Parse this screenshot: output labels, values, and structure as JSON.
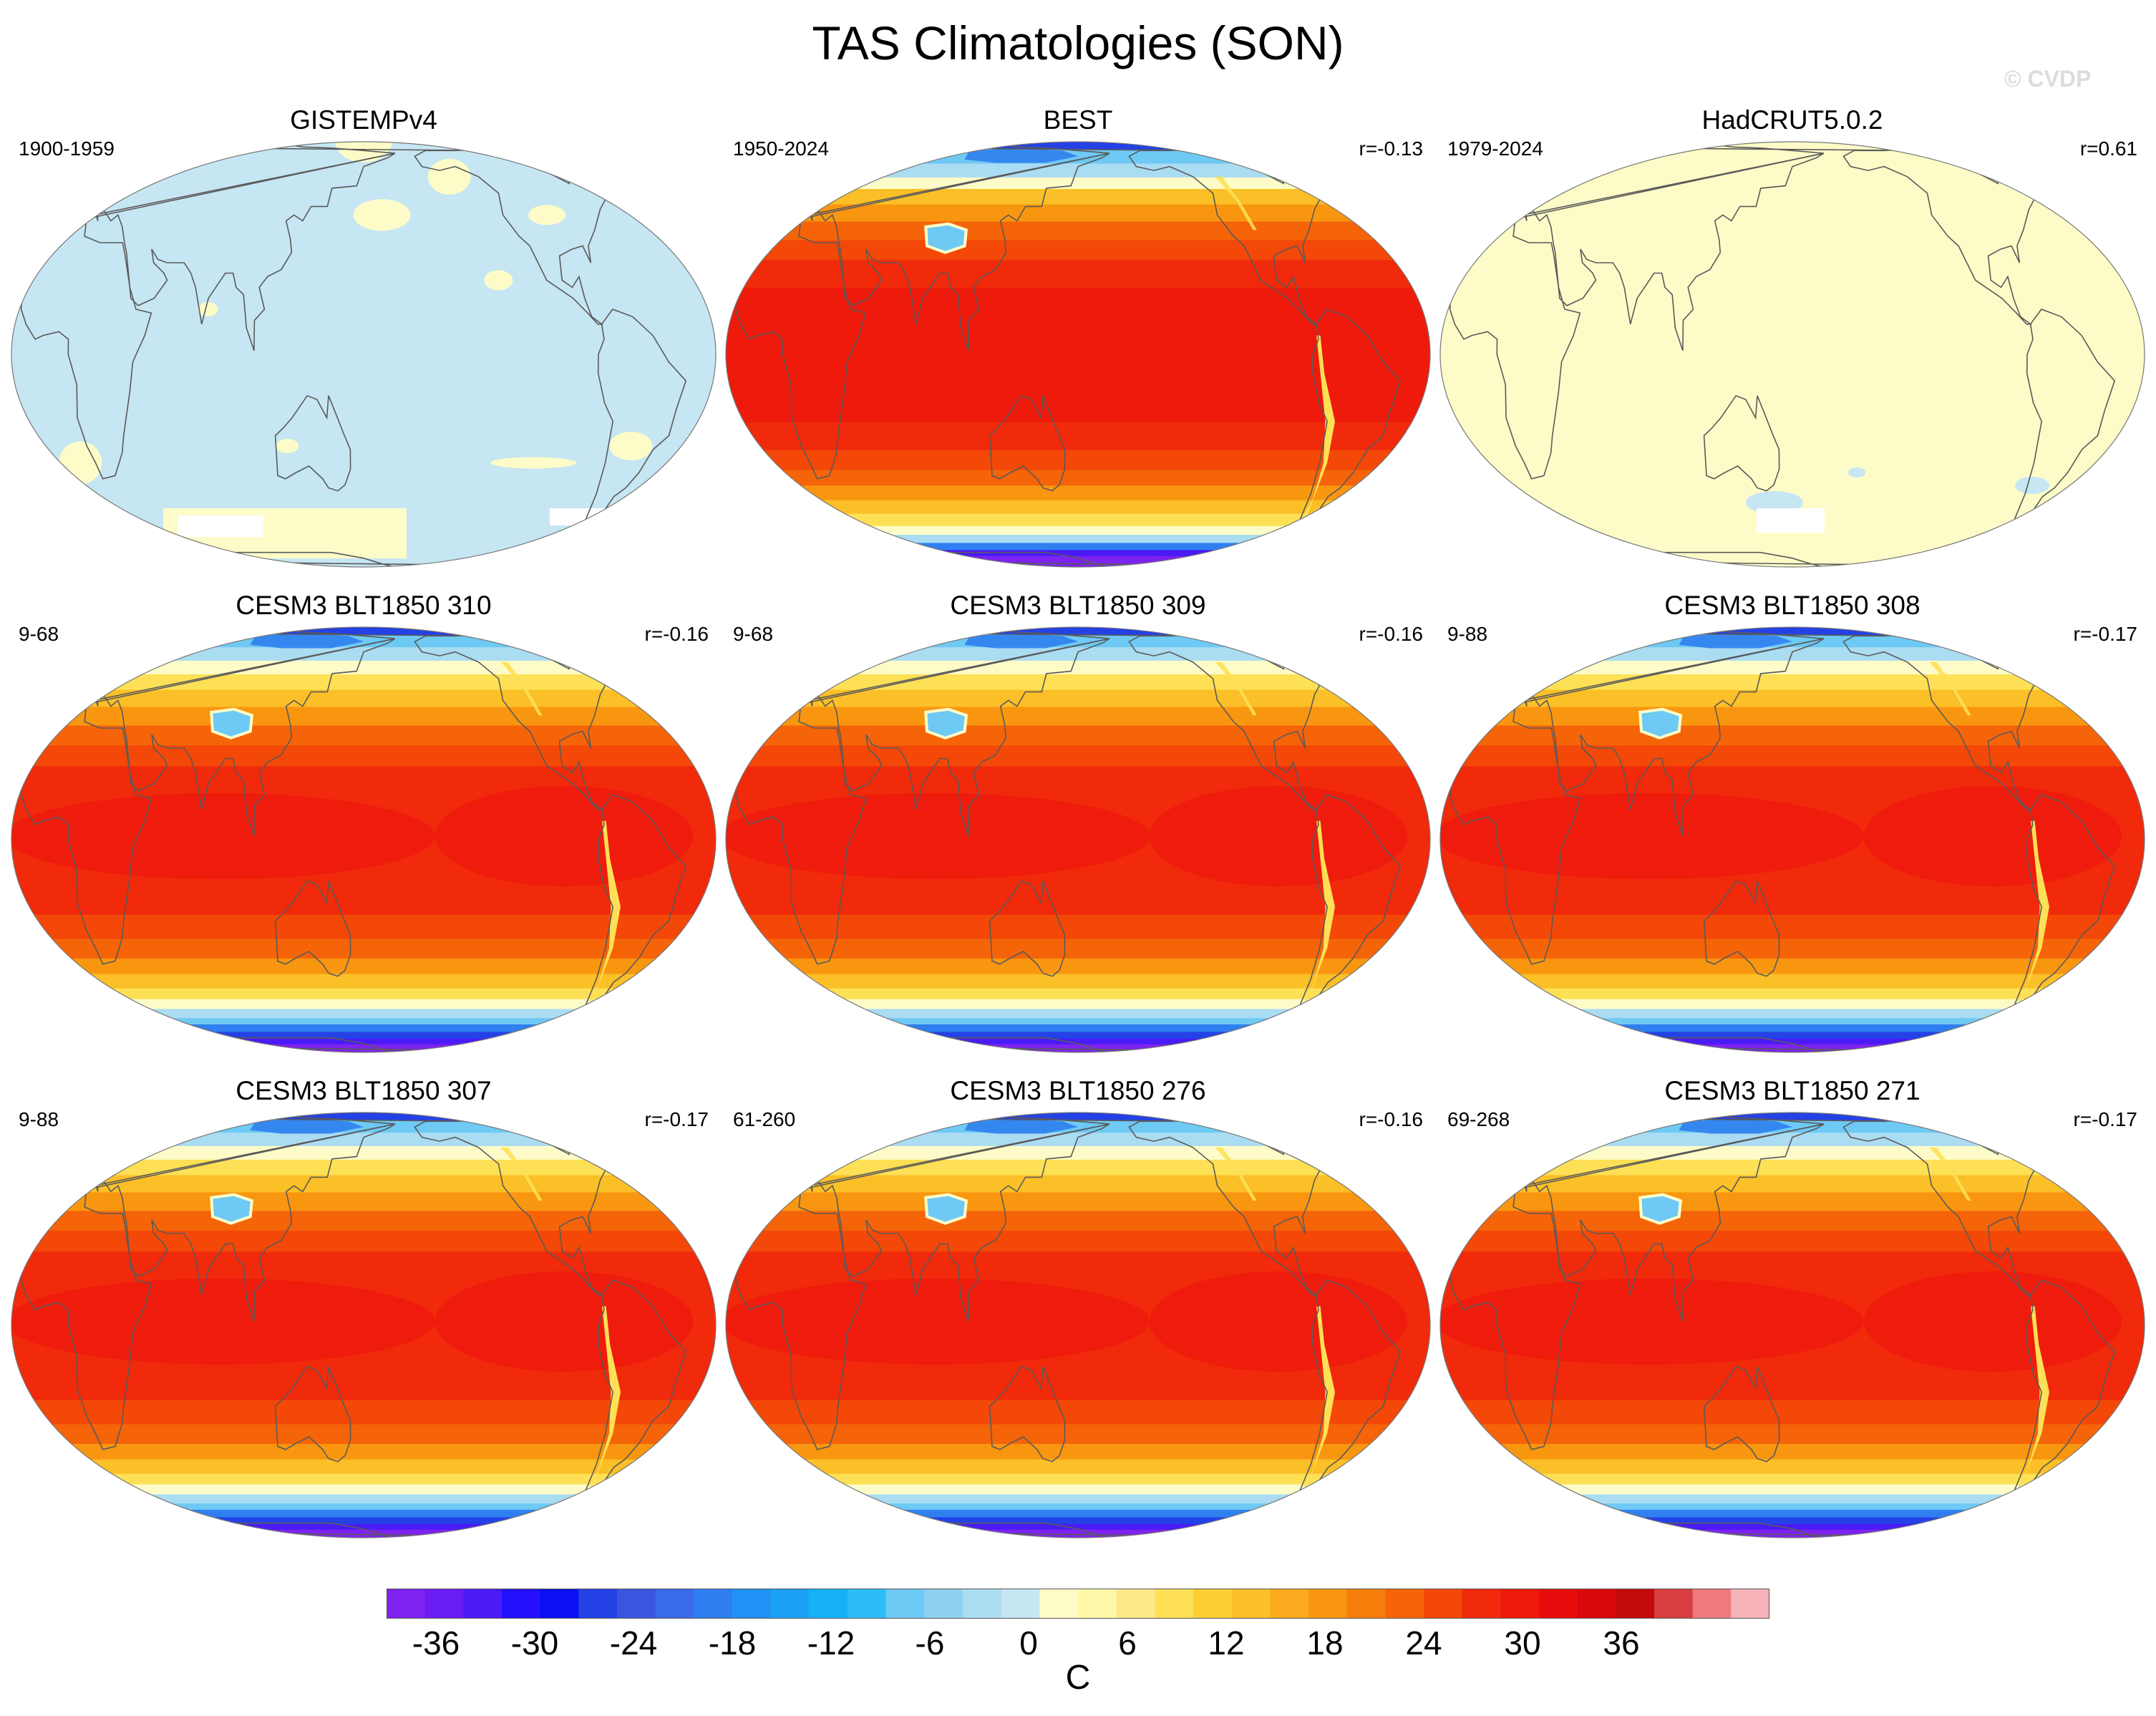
{
  "title": "TAS Climatologies (SON)",
  "watermark": "© CVDP",
  "unit": "C",
  "colorbar": {
    "ticks": [
      -36,
      -30,
      -24,
      -18,
      -12,
      -6,
      0,
      6,
      12,
      18,
      24,
      30,
      36
    ],
    "min": -39,
    "max": 45,
    "step": 3,
    "colors": [
      "#7e22f0",
      "#6a1cf4",
      "#4a1bf7",
      "#2410fa",
      "#0a10f2",
      "#2441e6",
      "#3a56df",
      "#3a6bea",
      "#2f7ff0",
      "#2291f5",
      "#1ba2f6",
      "#16b2f7",
      "#2cbdf7",
      "#6ec9f4",
      "#8fd0f0",
      "#aadcf2",
      "#c6e6f3",
      "#fdfcc8",
      "#fef8a8",
      "#fde88a",
      "#fde055",
      "#fcd034",
      "#fbbf27",
      "#fbab1d",
      "#f99610",
      "#f67e0a",
      "#f56409",
      "#f34808",
      "#f02a0a",
      "#ee1a0c",
      "#e80c0c",
      "#d9080a",
      "#c40a0a",
      "#d83d40",
      "#ee7a80",
      "#f6b4ba"
    ]
  },
  "panels": [
    {
      "title": "GISTEMPv4",
      "period": "1900-1959",
      "r": "",
      "style": "gistemp"
    },
    {
      "title": "BEST",
      "period": "1950-2024",
      "r": "r=-0.13",
      "style": "model"
    },
    {
      "title": "HadCRUT5.0.2",
      "period": "1979-2024",
      "r": "r=0.61",
      "style": "hadcrut"
    },
    {
      "title": "CESM3 BLT1850 310",
      "period": "9-68",
      "r": "r=-0.16",
      "style": "model"
    },
    {
      "title": "CESM3 BLT1850 309",
      "period": "9-68",
      "r": "r=-0.16",
      "style": "model"
    },
    {
      "title": "CESM3 BLT1850 308",
      "period": "9-88",
      "r": "r=-0.17",
      "style": "model"
    },
    {
      "title": "CESM3 BLT1850 307",
      "period": "9-88",
      "r": "r=-0.17",
      "style": "model"
    },
    {
      "title": "CESM3 BLT1850 276",
      "period": "61-260",
      "r": "r=-0.16",
      "style": "model"
    },
    {
      "title": "CESM3 BLT1850 271",
      "period": "69-268",
      "r": "r=-0.17",
      "style": "model"
    }
  ]
}
